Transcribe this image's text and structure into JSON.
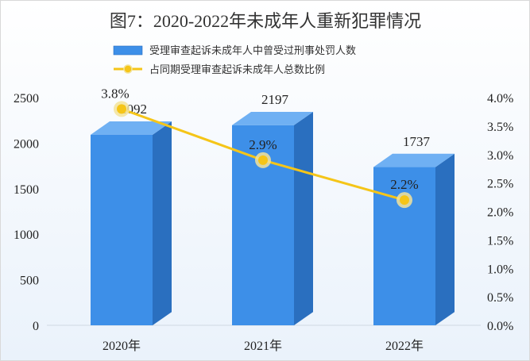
{
  "chart_data": {
    "type": "bar",
    "title": "图7：2020-2022年未成年人重新犯罪情况",
    "categories": [
      "2020年",
      "2021年",
      "2022年"
    ],
    "series": [
      {
        "name": "受理审查起诉未成年人中曾受过刑事处罚人数",
        "type": "bar",
        "axis": "left",
        "values": [
          2092,
          2197,
          1737
        ],
        "value_labels": [
          "2092",
          "2197",
          "1737"
        ],
        "color": "#3d8fe8"
      },
      {
        "name": "占同期受理审查起诉未成年人总数比例",
        "type": "line",
        "axis": "right",
        "values": [
          3.8,
          2.9,
          2.2
        ],
        "value_labels": [
          "3.8%",
          "2.9%",
          "2.2%"
        ],
        "color": "#f5c518"
      }
    ],
    "y_left": {
      "ylim": [
        0,
        2500
      ],
      "ticks": [
        0,
        500,
        1000,
        1500,
        2000,
        2500
      ],
      "tick_labels": [
        "0",
        "500",
        "1000",
        "1500",
        "2000",
        "2500"
      ]
    },
    "y_right": {
      "ylim": [
        0,
        4.0
      ],
      "ticks": [
        0,
        0.5,
        1.0,
        1.5,
        2.0,
        2.5,
        3.0,
        3.5,
        4.0
      ],
      "tick_labels": [
        "0.0%",
        "0.5%",
        "1.0%",
        "1.5%",
        "2.0%",
        "2.5%",
        "3.0%",
        "3.5%",
        "4.0%"
      ]
    },
    "bar_style": "3d",
    "grid": false,
    "legend_position": "top"
  }
}
